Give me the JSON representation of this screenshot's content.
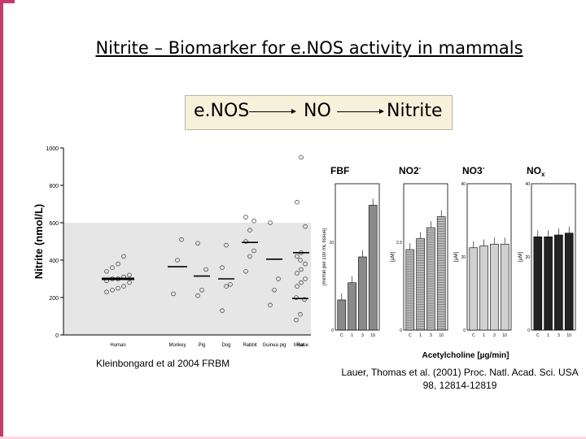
{
  "slide": {
    "title": "Nitrite – Biomarker for e.NOS activity in mammals",
    "pathway": [
      "e.NOS",
      "NO",
      "Nitrite"
    ],
    "accent_color": "#c8386a"
  },
  "left_figure": {
    "ylabel": "Nitrite (nmol/L)",
    "caption": "Kleinbongard et al 2004 FRBM",
    "chart_data": {
      "type": "scatter",
      "ylabel": "Nitrite (nmol/L)",
      "ylim": [
        0,
        1000
      ],
      "yticks": [
        "0",
        "200",
        "400",
        "600",
        "800",
        "1000"
      ],
      "categories": [
        "Human",
        "Monkey",
        "Pig",
        "Dog",
        "Rabbit",
        "Guinea pig",
        "Rat",
        "Mouse"
      ],
      "medians": [
        300,
        365,
        315,
        300,
        495,
        405,
        195,
        440
      ],
      "points": [
        [
          230,
          240,
          250,
          260,
          280,
          290,
          300,
          300,
          310,
          320,
          340,
          360,
          380,
          420
        ],
        [
          220,
          400,
          510
        ],
        [
          210,
          240,
          350,
          490
        ],
        [
          130,
          260,
          270,
          360,
          480
        ],
        [
          340,
          420,
          450,
          500,
          560,
          610,
          630
        ],
        [
          160,
          240,
          300,
          600
        ],
        [
          80,
          110,
          190,
          200,
          400
        ],
        [
          260,
          280,
          300,
          330,
          350,
          380,
          420,
          440,
          580,
          710,
          950
        ]
      ]
    }
  },
  "right_figure": {
    "xlabel": "Acetylcholine [µg/min]",
    "caption": "Lauer, Thomas et al. (2001) Proc. Natl. Acad. Sci. USA 98, 12814-12819",
    "chart_data": [
      {
        "type": "bar",
        "title": "FBF",
        "ylabel": "[ml/min per 100 mL tissue]",
        "categories": [
          "C",
          "1",
          "3",
          "10"
        ],
        "values": [
          3.5,
          5.5,
          8.5,
          14.5
        ],
        "ylim": [
          0,
          17
        ],
        "yticks": [
          "0",
          "10"
        ]
      },
      {
        "type": "bar",
        "title": "NO2-",
        "ylabel": "[µM]",
        "categories": [
          "C",
          "1",
          "3",
          "10"
        ],
        "values": [
          2.2,
          2.5,
          2.8,
          3.1
        ],
        "ylim": [
          0,
          4
        ],
        "yticks": [
          "0",
          "2.5"
        ]
      },
      {
        "type": "bar",
        "title": "NO3-",
        "ylabel": "[µM]",
        "categories": [
          "C",
          "1",
          "3",
          "10"
        ],
        "values": [
          22.5,
          23,
          23.5,
          23.5
        ],
        "ylim": [
          0,
          40
        ],
        "yticks": [
          "0",
          "20",
          "40"
        ]
      },
      {
        "type": "bar",
        "title": "NOx",
        "ylabel": "[µM]",
        "categories": [
          "C",
          "1",
          "3",
          "10"
        ],
        "values": [
          25.5,
          25.5,
          26,
          26.5
        ],
        "ylim": [
          0,
          40
        ],
        "yticks": [
          "0",
          "20",
          "40"
        ]
      }
    ]
  }
}
